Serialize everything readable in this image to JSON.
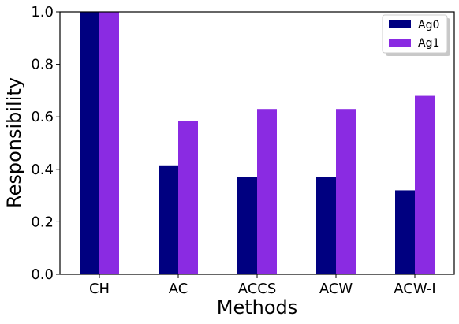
{
  "chart_data": {
    "type": "bar",
    "title": "",
    "xlabel": "Methods",
    "ylabel": "Responsibility",
    "categories": [
      "CH",
      "AC",
      "ACCS",
      "ACW",
      "ACW-I"
    ],
    "series": [
      {
        "name": "Ag0",
        "color": "#000080",
        "values": [
          1.0,
          0.415,
          0.37,
          0.37,
          0.32
        ]
      },
      {
        "name": "Ag1",
        "color": "#8a2be2",
        "values": [
          1.0,
          0.583,
          0.63,
          0.63,
          0.68
        ]
      }
    ],
    "ylim": [
      0.0,
      1.0
    ],
    "yticks": [
      "0.0",
      "0.2",
      "0.4",
      "0.6",
      "0.8",
      "1.0"
    ],
    "grid": false,
    "legend_position": "top-right"
  }
}
